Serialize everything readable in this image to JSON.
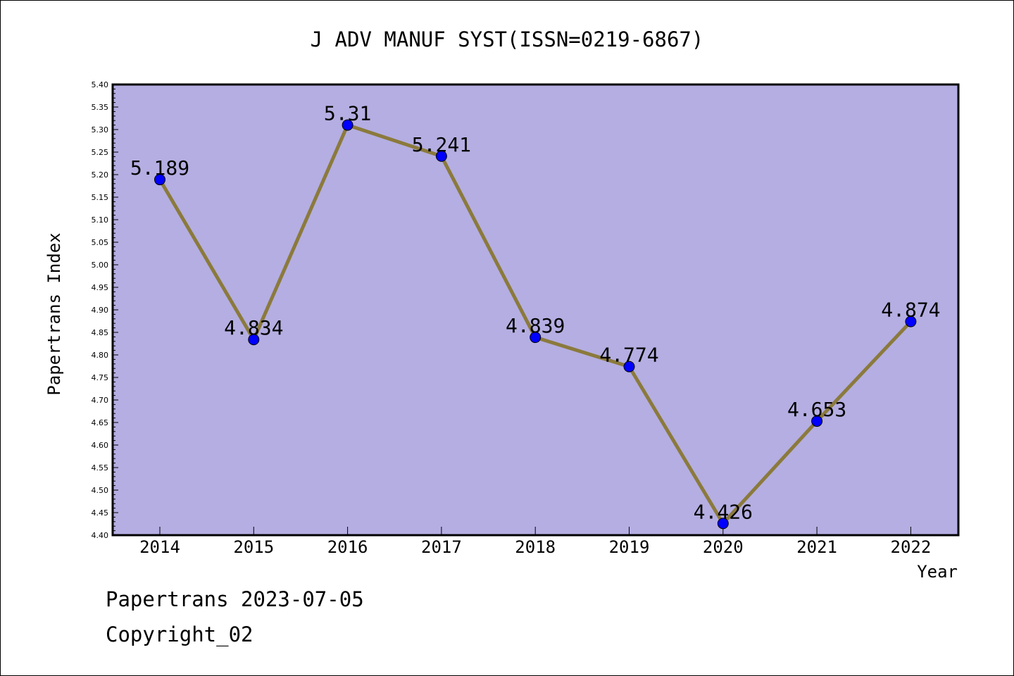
{
  "chart_data": {
    "type": "line",
    "title": "J ADV MANUF SYST(ISSN=0219-6867)",
    "xlabel": "Year",
    "ylabel": "Papertrans Index",
    "categories": [
      "2014",
      "2015",
      "2016",
      "2017",
      "2018",
      "2019",
      "2020",
      "2021",
      "2022"
    ],
    "values": [
      5.189,
      4.834,
      5.31,
      5.241,
      4.839,
      4.774,
      4.426,
      4.653,
      4.874
    ],
    "data_labels": [
      "5.189",
      "4.834",
      "5.31",
      "5.241",
      "4.839",
      "4.774",
      "4.426",
      "4.653",
      "4.874"
    ],
    "ylim": [
      4.4,
      5.4
    ],
    "yticks": [
      "4.40",
      "4.45",
      "4.50",
      "4.55",
      "4.60",
      "4.65",
      "4.70",
      "4.75",
      "4.80",
      "4.85",
      "4.90",
      "4.95",
      "5.00",
      "5.05",
      "5.10",
      "5.15",
      "5.20",
      "5.25",
      "5.30",
      "5.35",
      "5.40"
    ],
    "grid": false,
    "colors": {
      "plot_background": "#b4aee2",
      "line": "#8b7a3c",
      "marker": "#0000ff"
    }
  },
  "footer": {
    "line1": "Papertrans 2023-07-05",
    "line2": "Copyright_02"
  }
}
